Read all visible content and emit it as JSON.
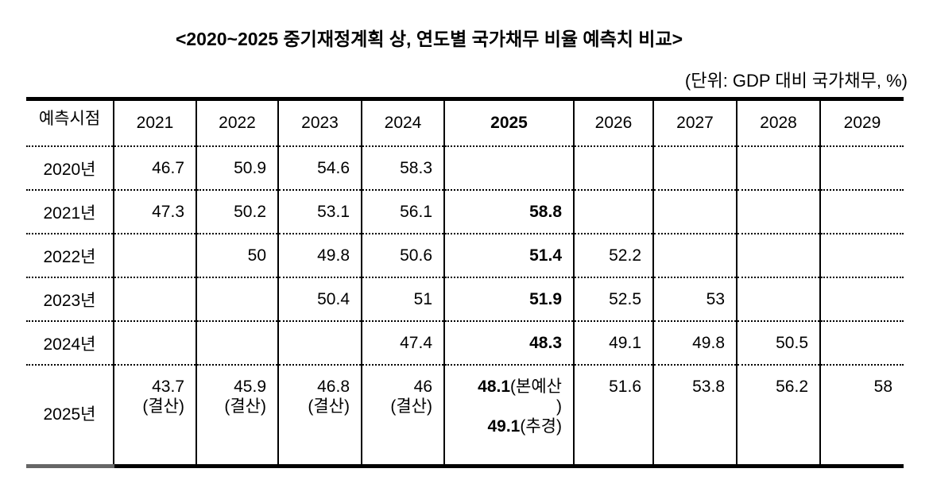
{
  "title": "<2020~2025 중기재정계획 상, 연도별 국가채무 비율 예측치 비교>",
  "unit": "(단위: GDP 대비 국가채무, %)",
  "table": {
    "corner": "예측시점",
    "columns": [
      "2021",
      "2022",
      "2023",
      "2024",
      "2025",
      "2026",
      "2027",
      "2028",
      "2029"
    ],
    "rows": [
      {
        "label": "2020년",
        "cells": [
          "46.7",
          "50.9",
          "54.6",
          "58.3",
          "",
          "",
          "",
          "",
          ""
        ]
      },
      {
        "label": "2021년",
        "cells": [
          "47.3",
          "50.2",
          "53.1",
          "56.1",
          "58.8",
          "",
          "",
          "",
          ""
        ]
      },
      {
        "label": "2022년",
        "cells": [
          "",
          "50",
          "49.8",
          "50.6",
          "51.4",
          "52.2",
          "",
          "",
          ""
        ]
      },
      {
        "label": "2023년",
        "cells": [
          "",
          "",
          "50.4",
          "51",
          "51.9",
          "52.5",
          "53",
          "",
          ""
        ]
      },
      {
        "label": "2024년",
        "cells": [
          "",
          "",
          "",
          "47.4",
          "48.3",
          "49.1",
          "49.8",
          "50.5",
          ""
        ]
      }
    ],
    "final_row": {
      "label": "2025년",
      "settled": [
        {
          "value": "43.7",
          "note": "(결산)"
        },
        {
          "value": "45.9",
          "note": "(결산)"
        },
        {
          "value": "46.8",
          "note": "(결산)"
        },
        {
          "value": "46",
          "note": "(결산)"
        }
      ],
      "y2025_main_value": "48.1",
      "y2025_main_note": "(본예산",
      "y2025_main_close": ")",
      "y2025_supp_value": "49.1",
      "y2025_supp_note": "(추경)",
      "rest": [
        "51.6",
        "53.8",
        "56.2",
        "58"
      ]
    }
  }
}
